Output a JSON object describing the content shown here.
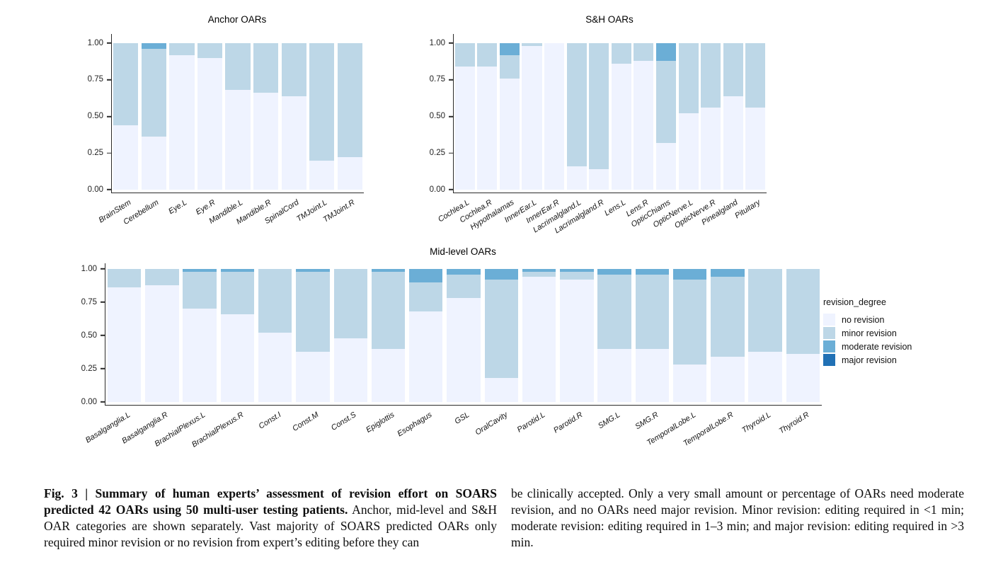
{
  "figure": {
    "legend": {
      "title": "revision_degree",
      "items": [
        {
          "label": "no revision",
          "color": "#EFF3FF"
        },
        {
          "label": "minor revision",
          "color": "#BDD7E7"
        },
        {
          "label": "moderate revision",
          "color": "#6BAED6"
        },
        {
          "label": "major revision",
          "color": "#2171B5"
        }
      ]
    },
    "caption": {
      "left_bold": "Fig. 3 | Summary of human experts’ assessment of revision effort on SOARS predicted 42 OARs using 50 multi-user testing patients.",
      "left_rest": " Anchor, mid-level and S&H OAR categories are shown separately. Vast majority of SOARS predicted OARs only required minor revision or no revision from expert’s editing before they can",
      "right": "be clinically accepted. Only a very small amount or percentage of OARs need moderate revision, and no OARs need major revision. Minor revision: editing required in <1 min; moderate revision: editing required in 1–3 min; and major revision: editing required in >3 min."
    }
  },
  "chart_data": [
    {
      "type": "bar",
      "stacked": true,
      "title": "Anchor OARs",
      "xlabel": "",
      "ylabel": "",
      "ylim": [
        0,
        1
      ],
      "yticks": [
        "0.00",
        "0.25",
        "0.50",
        "0.75",
        "1.00"
      ],
      "grid": false,
      "categories": [
        "BrainStem",
        "Cerebellum",
        "Eye.L",
        "Eye.R",
        "Mandible.L",
        "Mandible.R",
        "SpinalCord",
        "TMJoint.L",
        "TMJoint.R"
      ],
      "series": [
        {
          "name": "no revision",
          "color": "#EFF3FF",
          "values": [
            0.44,
            0.36,
            0.92,
            0.9,
            0.68,
            0.66,
            0.64,
            0.2,
            0.22
          ]
        },
        {
          "name": "minor revision",
          "color": "#BDD7E7",
          "values": [
            0.56,
            0.6,
            0.08,
            0.1,
            0.32,
            0.34,
            0.36,
            0.8,
            0.78
          ]
        },
        {
          "name": "moderate revision",
          "color": "#6BAED6",
          "values": [
            0,
            0.04,
            0,
            0,
            0,
            0,
            0,
            0,
            0
          ]
        },
        {
          "name": "major revision",
          "color": "#2171B5",
          "values": [
            0,
            0,
            0,
            0,
            0,
            0,
            0,
            0,
            0
          ]
        }
      ]
    },
    {
      "type": "bar",
      "stacked": true,
      "title": "S&H OARs",
      "xlabel": "",
      "ylabel": "",
      "ylim": [
        0,
        1
      ],
      "yticks": [
        "0.00",
        "0.25",
        "0.50",
        "0.75",
        "1.00"
      ],
      "grid": false,
      "categories": [
        "Cochlea.L",
        "Cochlea.R",
        "Hypothalamas",
        "InnerEar.L",
        "InnerEar.R",
        "Lacrimalgland.L",
        "Lacrimalgland.R",
        "Lens.L",
        "Lens.R",
        "OpticChiams",
        "OpticNerve.L",
        "OpticNerve.R",
        "Pinealgland",
        "Pituitary"
      ],
      "series": [
        {
          "name": "no revision",
          "color": "#EFF3FF",
          "values": [
            0.84,
            0.84,
            0.76,
            0.98,
            1.0,
            0.16,
            0.14,
            0.86,
            0.88,
            0.32,
            0.52,
            0.56,
            0.64,
            0.56
          ]
        },
        {
          "name": "minor revision",
          "color": "#BDD7E7",
          "values": [
            0.16,
            0.16,
            0.16,
            0.02,
            0,
            0.84,
            0.86,
            0.14,
            0.12,
            0.56,
            0.48,
            0.44,
            0.36,
            0.44
          ]
        },
        {
          "name": "moderate revision",
          "color": "#6BAED6",
          "values": [
            0,
            0,
            0.08,
            0,
            0,
            0,
            0,
            0,
            0,
            0.12,
            0,
            0,
            0,
            0
          ]
        },
        {
          "name": "major revision",
          "color": "#2171B5",
          "values": [
            0,
            0,
            0,
            0,
            0,
            0,
            0,
            0,
            0,
            0,
            0,
            0,
            0,
            0
          ]
        }
      ]
    },
    {
      "type": "bar",
      "stacked": true,
      "title": "Mid-level OARs",
      "xlabel": "",
      "ylabel": "",
      "ylim": [
        0,
        1
      ],
      "yticks": [
        "0.00",
        "0.25",
        "0.50",
        "0.75",
        "1.00"
      ],
      "grid": false,
      "categories": [
        "Basalganglia.L",
        "Basalganglia.R",
        "BrachialPlexus.L",
        "BrachialPlexus.R",
        "Const.I",
        "Const.M",
        "Const.S",
        "Epiglottis",
        "Esophagus",
        "GSL",
        "OralCavity",
        "Parotid.L",
        "Parotid.R",
        "SMG.L",
        "SMG.R",
        "TemporalLobe.L",
        "TemporalLobe.R",
        "Thyroid.L",
        "Thyroid.R"
      ],
      "series": [
        {
          "name": "no revision",
          "color": "#EFF3FF",
          "values": [
            0.86,
            0.88,
            0.7,
            0.66,
            0.52,
            0.38,
            0.48,
            0.4,
            0.68,
            0.78,
            0.18,
            0.94,
            0.92,
            0.4,
            0.4,
            0.28,
            0.34,
            0.38,
            0.36
          ]
        },
        {
          "name": "minor revision",
          "color": "#BDD7E7",
          "values": [
            0.14,
            0.12,
            0.28,
            0.32,
            0.48,
            0.6,
            0.52,
            0.58,
            0.22,
            0.18,
            0.74,
            0.04,
            0.06,
            0.56,
            0.56,
            0.64,
            0.6,
            0.62,
            0.64
          ]
        },
        {
          "name": "moderate revision",
          "color": "#6BAED6",
          "values": [
            0,
            0,
            0.02,
            0.02,
            0,
            0.02,
            0,
            0.02,
            0.1,
            0.04,
            0.08,
            0.02,
            0.02,
            0.04,
            0.04,
            0.08,
            0.06,
            0,
            0
          ]
        },
        {
          "name": "major revision",
          "color": "#2171B5",
          "values": [
            0,
            0,
            0,
            0,
            0,
            0,
            0,
            0,
            0,
            0,
            0,
            0,
            0,
            0,
            0,
            0,
            0,
            0,
            0
          ]
        }
      ]
    }
  ]
}
